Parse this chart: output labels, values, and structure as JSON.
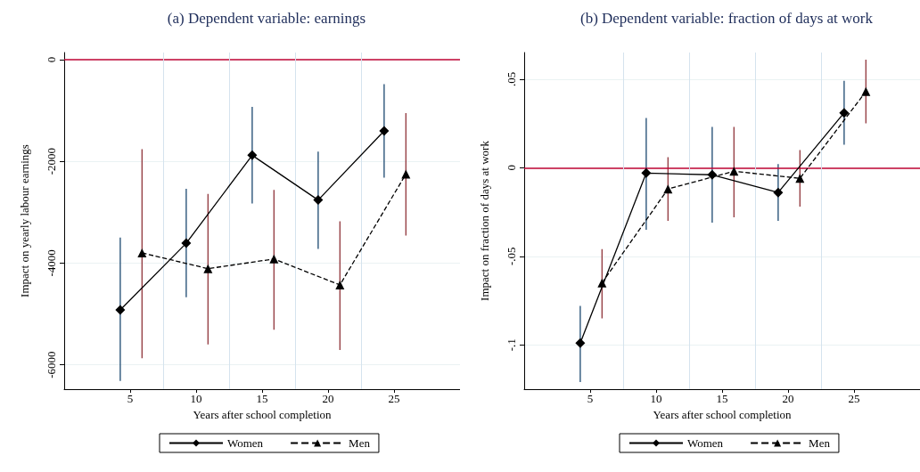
{
  "chart_data": [
    {
      "type": "line",
      "title": "(a) Dependent variable: earnings",
      "xlabel": "Years after school completion",
      "ylabel": "Impact on yearly labour earnings",
      "xlim": [
        0,
        30
      ],
      "xticks": [
        5,
        10,
        15,
        20,
        25
      ],
      "ylim": [
        -6480,
        140
      ],
      "yticks": [
        -6000,
        -4000,
        -2000,
        0
      ],
      "grid": "y",
      "legend": "bottom",
      "series": [
        {
          "name": "Women",
          "color": "#000000",
          "marker": "diamond",
          "line_style": "solid",
          "x": [
            4.25,
            9.25,
            14.25,
            19.25,
            24.25
          ],
          "values": [
            -4920,
            -3610,
            -1880,
            -2760,
            -1400
          ],
          "errors": [
            [
              -6320,
              -3500
            ],
            [
              -4670,
              -2540
            ],
            [
              -2830,
              -930
            ],
            [
              -3720,
              -1810
            ],
            [
              -2320,
              -480
            ]
          ]
        },
        {
          "name": "Men",
          "color": "#000000",
          "marker": "triangle",
          "line_style": "dashed",
          "x": [
            5.9,
            10.9,
            15.9,
            20.9,
            25.9
          ],
          "values": [
            -3800,
            -4110,
            -3920,
            -4430,
            -2250
          ],
          "errors": [
            [
              -5870,
              -1760
            ],
            [
              -5600,
              -2640
            ],
            [
              -5310,
              -2560
            ],
            [
              -5710,
              -3180
            ],
            [
              -3460,
              -1050
            ]
          ]
        }
      ],
      "ref_lines": [
        {
          "axis": "y",
          "value": 0,
          "color": "#c10534"
        },
        {
          "axis": "x",
          "value": 7.5,
          "color": "#d5e3ee"
        },
        {
          "axis": "x",
          "value": 12.5,
          "color": "#d5e3ee"
        },
        {
          "axis": "x",
          "value": 17.5,
          "color": "#d5e3ee"
        },
        {
          "axis": "x",
          "value": 22.5,
          "color": "#d5e3ee"
        }
      ]
    },
    {
      "type": "line",
      "title": "(b) Dependent variable: fraction of days at work",
      "xlabel": "Years after school completion",
      "ylabel": "Impact on fraction of days at work",
      "xlim": [
        0,
        30
      ],
      "xticks": [
        5,
        10,
        15,
        20,
        25
      ],
      "ylim": [
        -0.125,
        0.065
      ],
      "yticks": [
        {
          "value": -0.1,
          "label": "-.1"
        },
        {
          "value": -0.05,
          "label": "-.05"
        },
        0,
        {
          "value": 0.05,
          "label": ".05"
        }
      ],
      "grid": "y",
      "legend": "bottom",
      "series": [
        {
          "name": "Women",
          "color": "#000000",
          "marker": "diamond",
          "line_style": "solid",
          "x": [
            4.25,
            9.25,
            14.25,
            19.25,
            24.25
          ],
          "values": [
            -0.099,
            -0.003,
            -0.004,
            -0.014,
            0.031
          ],
          "errors": [
            [
              -0.121,
              -0.078
            ],
            [
              -0.035,
              0.028
            ],
            [
              -0.031,
              0.023
            ],
            [
              -0.03,
              0.002
            ],
            [
              0.013,
              0.049
            ]
          ]
        },
        {
          "name": "Men",
          "color": "#000000",
          "marker": "triangle",
          "line_style": "dashed",
          "x": [
            5.9,
            10.9,
            15.9,
            20.9,
            25.9
          ],
          "values": [
            -0.065,
            -0.012,
            -0.002,
            -0.006,
            0.043
          ],
          "errors": [
            [
              -0.085,
              -0.046
            ],
            [
              -0.03,
              0.006
            ],
            [
              -0.028,
              0.023
            ],
            [
              -0.022,
              0.01
            ],
            [
              0.025,
              0.061
            ]
          ]
        }
      ],
      "ref_lines": [
        {
          "axis": "y",
          "value": 0,
          "color": "#c10534"
        },
        {
          "axis": "x",
          "value": 7.5,
          "color": "#d5e3ee"
        },
        {
          "axis": "x",
          "value": 12.5,
          "color": "#d5e3ee"
        },
        {
          "axis": "x",
          "value": 17.5,
          "color": "#d5e3ee"
        },
        {
          "axis": "x",
          "value": 22.5,
          "color": "#d5e3ee"
        }
      ]
    }
  ]
}
